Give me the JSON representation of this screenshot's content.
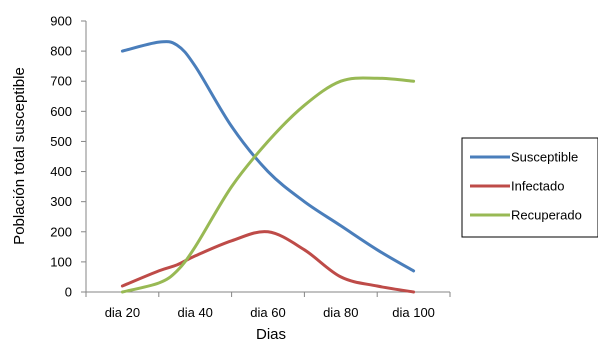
{
  "chart_data": {
    "type": "line",
    "title": "",
    "xlabel": "Dias",
    "ylabel": "Población total susceptible",
    "categories": [
      "dia 20",
      "dia 40",
      "dia 60",
      "dia 80",
      "dia 100"
    ],
    "x": [
      20,
      30,
      35,
      40,
      50,
      60,
      70,
      80,
      90,
      100
    ],
    "ylim": [
      0,
      900
    ],
    "yticks": [
      0,
      100,
      200,
      300,
      400,
      500,
      600,
      700,
      800,
      900
    ],
    "grid": false,
    "legend_position": "right",
    "series": [
      {
        "name": "Susceptible",
        "color": "#4a7ebb",
        "values": [
          800,
          830,
          820,
          750,
          550,
          400,
          300,
          220,
          140,
          70
        ]
      },
      {
        "name": "Infectado",
        "color": "#be4b48",
        "values": [
          20,
          70,
          90,
          120,
          170,
          200,
          140,
          50,
          20,
          0
        ]
      },
      {
        "name": "Recuperado",
        "color": "#98b954",
        "values": [
          0,
          30,
          70,
          150,
          350,
          500,
          620,
          700,
          710,
          700
        ]
      }
    ]
  }
}
